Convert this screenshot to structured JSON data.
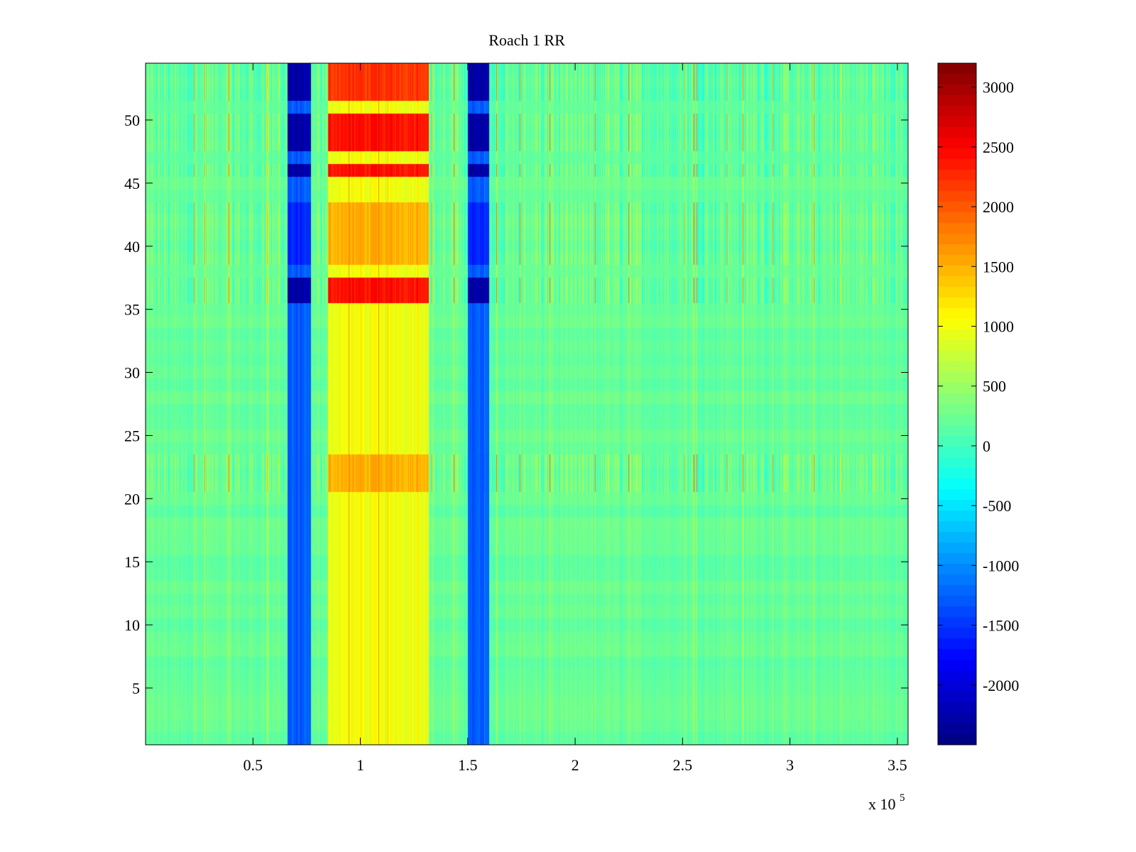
{
  "chart_data": {
    "type": "heatmap",
    "title": "Roach 1 RR",
    "xlabel": "",
    "ylabel": "",
    "x_multiplier_label": "x 10",
    "x_multiplier_exponent": "5",
    "xlim": [
      0,
      355000
    ],
    "ylim": [
      0.5,
      54.5
    ],
    "x_ticks": [
      50000,
      100000,
      150000,
      200000,
      250000,
      300000,
      350000
    ],
    "x_tick_labels": [
      "0.5",
      "1",
      "1.5",
      "2",
      "2.5",
      "3",
      "3.5"
    ],
    "y_ticks": [
      5,
      10,
      15,
      20,
      25,
      30,
      35,
      40,
      45,
      50
    ],
    "y_tick_labels": [
      "5",
      "10",
      "15",
      "20",
      "25",
      "30",
      "35",
      "40",
      "45",
      "50"
    ],
    "colormap": "jet",
    "clim": [
      -2500,
      3200
    ],
    "colorbar_ticks": [
      3000,
      2500,
      2000,
      1500,
      1000,
      500,
      0,
      -500,
      -1000,
      -1500,
      -2000
    ],
    "colorbar_tick_labels": [
      "3000",
      "2500",
      "2000",
      "1500",
      "1000",
      "500",
      "0",
      "-500",
      "-1000",
      "-1500",
      "-2000"
    ],
    "rows": 54,
    "baseline_value": 200,
    "vertical_bands": [
      {
        "x_start": 66000,
        "x_end": 77000,
        "value": -1300
      },
      {
        "x_start": 85000,
        "x_end": 132000,
        "value": 1000
      },
      {
        "x_start": 150000,
        "x_end": 160000,
        "value": -1300
      }
    ],
    "row_groups": [
      {
        "rows": [
          52,
          53,
          54
        ],
        "band_values": [
          -2300,
          2200,
          -2300
        ]
      },
      {
        "rows": [
          46,
          48,
          49,
          50
        ],
        "band_values": [
          -2300,
          2400,
          -2300
        ]
      },
      {
        "rows": [
          36,
          37
        ],
        "band_values": [
          -2300,
          2400,
          -2300
        ]
      },
      {
        "rows": [
          39,
          40,
          41,
          42,
          43
        ],
        "band_values": [
          -1600,
          1500,
          -1600
        ]
      },
      {
        "rows": [
          21,
          22,
          23
        ],
        "band_values": [
          -1300,
          1500,
          -1300
        ]
      }
    ],
    "grid": false,
    "colorbar_position": "right"
  }
}
